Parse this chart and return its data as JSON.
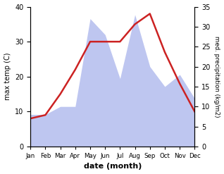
{
  "months": [
    "Jan",
    "Feb",
    "Mar",
    "Apr",
    "May",
    "Jun",
    "Jul",
    "Aug",
    "Sep",
    "Oct",
    "Nov",
    "Dec"
  ],
  "temp": [
    8,
    9,
    15,
    22,
    30,
    30,
    30,
    35,
    38,
    27,
    18,
    10
  ],
  "precip": [
    8,
    8,
    10,
    10,
    32,
    28,
    17,
    33,
    20,
    15,
    18,
    12
  ],
  "temp_color": "#cc2222",
  "precip_color": "#b3bcee",
  "ylabel_left": "max temp (C)",
  "ylabel_right": "med. precipitation (kg/m2)",
  "xlabel": "date (month)",
  "ylim_left": [
    0,
    40
  ],
  "ylim_right": [
    0,
    35
  ],
  "yticks_left": [
    0,
    10,
    20,
    30,
    40
  ],
  "yticks_right": [
    0,
    5,
    10,
    15,
    20,
    25,
    30,
    35
  ],
  "temp_linewidth": 1.8
}
